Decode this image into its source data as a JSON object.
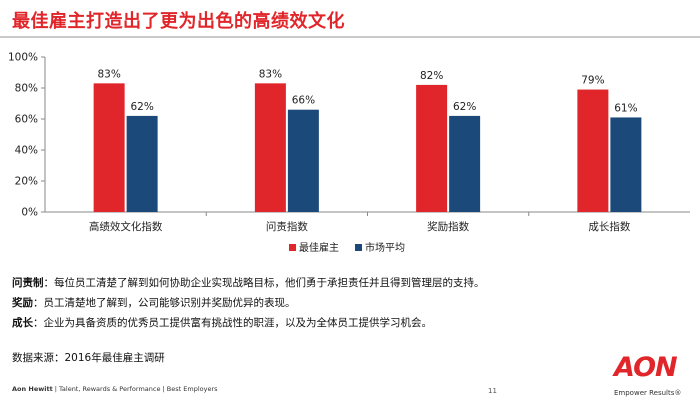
{
  "title": "最佳雇主打造出了更为出色的高绩效文化",
  "chart_data": {
    "type": "bar",
    "categories": [
      "高绩效文化指数",
      "问责指数",
      "奖励指数",
      "成长指数"
    ],
    "series": [
      {
        "name": "最佳雇主",
        "color": "#e0262a",
        "values": [
          83,
          83,
          82,
          79
        ],
        "labels": [
          "83%",
          "83%",
          "82%",
          "79%"
        ]
      },
      {
        "name": "市场平均",
        "color": "#1b4a7a",
        "values": [
          62,
          66,
          62,
          61
        ],
        "labels": [
          "62%",
          "66%",
          "62%",
          "61%"
        ]
      }
    ],
    "ylim": [
      0,
      100
    ],
    "yticks": [
      0,
      20,
      40,
      60,
      80,
      100
    ],
    "ytick_labels": [
      "0%",
      "20%",
      "40%",
      "60%",
      "80%",
      "100%"
    ],
    "legend_position": "bottom-center",
    "grid": false
  },
  "notes": [
    {
      "key": "问责制",
      "text": "：每位员工清楚了解到如何协助企业实现战略目标，他们勇于承担责任并且得到管理层的支持。"
    },
    {
      "key": "奖励",
      "text": "：员工清楚地了解到，公司能够识别并奖励优异的表现。"
    },
    {
      "key": "成长",
      "text": "：企业为具备资质的优秀员工提供富有挑战性的职涯，以及为全体员工提供学习机会。"
    }
  ],
  "source": "数据来源：2016年最佳雇主调研",
  "footer": {
    "brand": "Aon Hewitt",
    "rest": " | Talent, Rewards & Performance | Best Employers"
  },
  "page_number": "11",
  "logo": {
    "word": "AON",
    "tagline": "Empower Results®"
  }
}
